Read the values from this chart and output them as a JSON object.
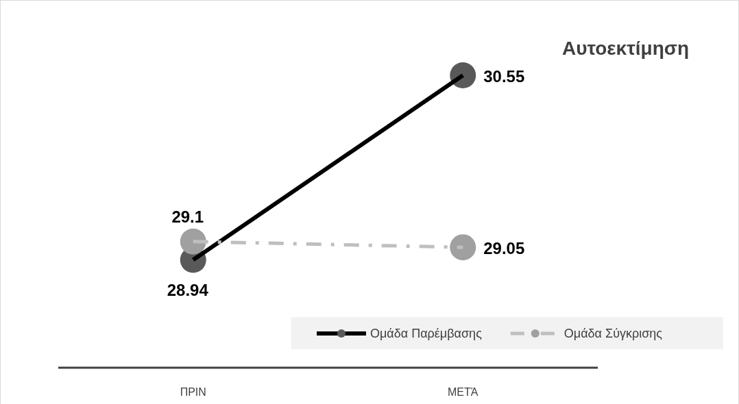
{
  "chart_data": {
    "type": "line",
    "title": "Αυτοεκτίμηση",
    "categories": [
      "ΠΡΙΝ",
      "ΜΕΤΆ"
    ],
    "data_labels": true,
    "legend": "bottom right",
    "marker": "circle",
    "series": [
      {
        "name": "Ομάδα Παρέμβασης",
        "color": "#000000",
        "values": [
          28.94,
          30.55
        ],
        "line_style": "solid"
      },
      {
        "name": "Ομάδα Σύγκρισης",
        "color": "#bfbfbf",
        "values": [
          29.1,
          29.05
        ],
        "line_style": "dashed"
      }
    ]
  }
}
